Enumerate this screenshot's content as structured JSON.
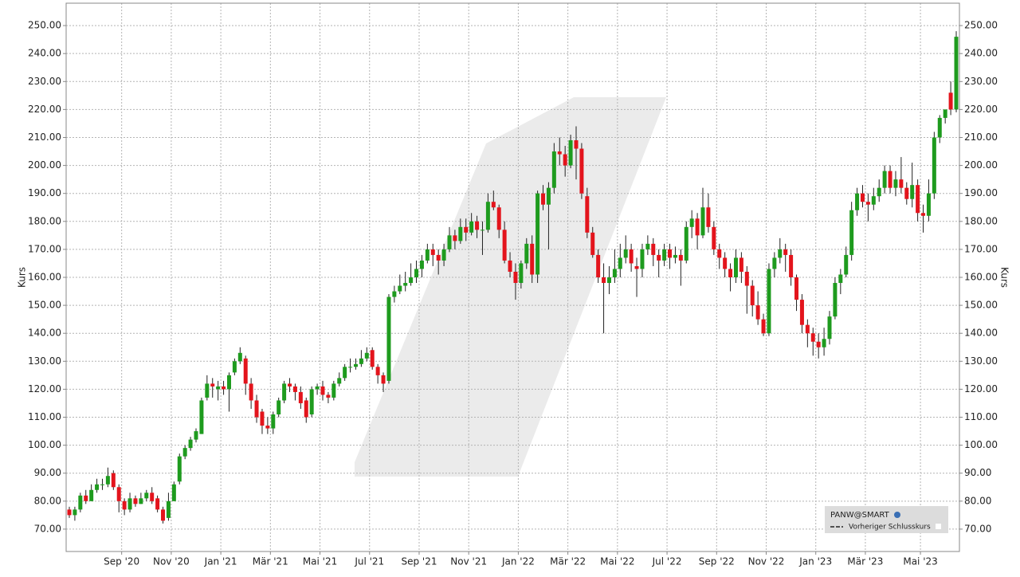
{
  "chart_data": {
    "type": "candlestick",
    "y_label": "Kurs",
    "grid": true,
    "legend": "bottom-right",
    "ylim": [
      62,
      258
    ],
    "yticks": [
      {
        "value": 70,
        "label": "70.00"
      },
      {
        "value": 80,
        "label": "80.00"
      },
      {
        "value": 90,
        "label": "90.00"
      },
      {
        "value": 100,
        "label": "100.00"
      },
      {
        "value": 110,
        "label": "110.00"
      },
      {
        "value": 120,
        "label": "120.00"
      },
      {
        "value": 130,
        "label": "130.00"
      },
      {
        "value": 140,
        "label": "140.00"
      },
      {
        "value": 150,
        "label": "150.00"
      },
      {
        "value": 160,
        "label": "160.00"
      },
      {
        "value": 170,
        "label": "170.00"
      },
      {
        "value": 180,
        "label": "180.00"
      },
      {
        "value": 190,
        "label": "190.00"
      },
      {
        "value": 200,
        "label": "200.00"
      },
      {
        "value": 210,
        "label": "210.00"
      },
      {
        "value": 220,
        "label": "220.00"
      },
      {
        "value": 230,
        "label": "230.00"
      },
      {
        "value": 240,
        "label": "240.00"
      },
      {
        "value": 250,
        "label": "250.00"
      }
    ],
    "categories": [
      null,
      null,
      null,
      null,
      null,
      null,
      null,
      null,
      null,
      null,
      "Sep '20",
      null,
      null,
      null,
      null,
      null,
      null,
      null,
      null,
      "Nov '20",
      null,
      null,
      null,
      null,
      null,
      null,
      null,
      null,
      "Jan '21",
      null,
      null,
      null,
      null,
      null,
      null,
      null,
      null,
      "Mär '21",
      null,
      null,
      null,
      null,
      null,
      null,
      null,
      null,
      "Mai '21",
      null,
      null,
      null,
      null,
      null,
      null,
      null,
      null,
      "Jul '21",
      null,
      null,
      null,
      null,
      null,
      null,
      null,
      null,
      "Sep '21",
      null,
      null,
      null,
      null,
      null,
      null,
      null,
      null,
      "Nov '21",
      null,
      null,
      null,
      null,
      null,
      null,
      null,
      null,
      "Jan '22",
      null,
      null,
      null,
      null,
      null,
      null,
      null,
      null,
      "Mär '22",
      null,
      null,
      null,
      null,
      null,
      null,
      null,
      null,
      "Mai '22",
      null,
      null,
      null,
      null,
      null,
      null,
      null,
      null,
      "Jul '22",
      null,
      null,
      null,
      null,
      null,
      null,
      null,
      null,
      "Sep '22",
      null,
      null,
      null,
      null,
      null,
      null,
      null,
      null,
      "Nov '22",
      null,
      null,
      null,
      null,
      null,
      null,
      null,
      null,
      "Jan '23",
      null,
      null,
      null,
      null,
      null,
      null,
      null,
      null,
      "Mär '23",
      null,
      null,
      null,
      null,
      null,
      null,
      null,
      null,
      null,
      "Mai '23",
      null,
      null,
      null,
      null,
      null,
      null
    ],
    "series": [
      {
        "name": "PANW@SMART",
        "up_color": "#1e9b1e",
        "down_color": "#e3141c",
        "ohlc": [
          [
            77,
            78,
            74,
            75
          ],
          [
            75,
            78,
            73,
            77
          ],
          [
            77,
            83,
            76,
            82
          ],
          [
            82,
            84,
            79,
            80
          ],
          [
            80,
            86,
            80,
            84
          ],
          [
            84,
            88,
            83,
            86
          ],
          [
            86,
            88,
            84,
            86
          ],
          [
            86,
            92,
            85,
            89
          ],
          [
            90,
            91,
            84,
            85
          ],
          [
            85,
            86,
            76,
            80
          ],
          [
            80,
            81,
            75,
            77
          ],
          [
            77,
            83,
            76,
            81
          ],
          [
            81,
            82,
            78,
            79
          ],
          [
            79,
            83,
            79,
            81
          ],
          [
            81,
            84,
            80,
            83
          ],
          [
            83,
            85,
            79,
            80
          ],
          [
            81,
            82,
            76,
            77
          ],
          [
            77,
            78,
            72,
            73
          ],
          [
            74,
            83,
            73,
            80
          ],
          [
            80,
            87,
            80,
            86
          ],
          [
            87,
            97,
            86,
            96
          ],
          [
            96,
            100,
            95,
            99
          ],
          [
            99,
            103,
            98,
            102
          ],
          [
            102,
            106,
            101,
            105
          ],
          [
            104,
            117,
            104,
            116
          ],
          [
            117,
            125,
            116,
            122
          ],
          [
            122,
            124,
            117,
            121
          ],
          [
            120,
            123,
            116,
            121
          ],
          [
            121,
            123,
            118,
            120
          ],
          [
            120,
            126,
            112,
            125
          ],
          [
            126,
            131,
            125,
            130
          ],
          [
            130,
            135,
            129,
            133
          ],
          [
            131,
            132,
            118,
            122
          ],
          [
            122,
            124,
            113,
            116
          ],
          [
            116,
            118,
            108,
            110
          ],
          [
            112,
            113,
            104,
            107
          ],
          [
            107,
            110,
            104,
            106
          ],
          [
            106,
            112,
            104,
            111
          ],
          [
            111,
            117,
            110,
            116
          ],
          [
            116,
            123,
            115,
            122
          ],
          [
            122,
            124,
            119,
            121
          ],
          [
            121,
            122,
            116,
            119
          ],
          [
            119,
            121,
            113,
            115
          ],
          [
            116,
            117,
            108,
            110
          ],
          [
            111,
            121,
            110,
            120
          ],
          [
            120,
            122,
            118,
            121
          ],
          [
            121,
            123,
            116,
            118
          ],
          [
            118,
            119,
            115,
            117
          ],
          [
            117,
            123,
            116,
            122
          ],
          [
            122,
            126,
            121,
            124
          ],
          [
            124,
            129,
            123,
            128
          ],
          [
            128,
            131,
            126,
            128
          ],
          [
            128,
            131,
            127,
            129
          ],
          [
            129,
            134,
            128,
            131
          ],
          [
            131,
            135,
            130,
            133
          ],
          [
            134,
            135,
            127,
            128
          ],
          [
            128,
            129,
            122,
            125
          ],
          [
            125,
            126,
            119,
            122
          ],
          [
            123,
            154,
            122,
            153
          ],
          [
            153,
            157,
            151,
            155
          ],
          [
            155,
            161,
            154,
            157
          ],
          [
            157,
            162,
            155,
            158
          ],
          [
            158,
            165,
            157,
            160
          ],
          [
            160,
            166,
            158,
            163
          ],
          [
            163,
            168,
            160,
            166
          ],
          [
            166,
            172,
            165,
            170
          ],
          [
            170,
            172,
            164,
            168
          ],
          [
            168,
            170,
            161,
            166
          ],
          [
            166,
            172,
            164,
            170
          ],
          [
            170,
            178,
            169,
            175
          ],
          [
            175,
            177,
            170,
            173
          ],
          [
            173,
            181,
            172,
            178
          ],
          [
            178,
            181,
            173,
            176
          ],
          [
            176,
            183,
            175,
            180
          ],
          [
            180,
            182,
            174,
            177
          ],
          [
            177,
            180,
            168,
            177
          ],
          [
            177,
            190,
            176,
            187
          ],
          [
            187,
            191,
            184,
            185
          ],
          [
            185,
            186,
            174,
            177
          ],
          [
            177,
            180,
            165,
            166
          ],
          [
            166,
            169,
            160,
            162
          ],
          [
            162,
            165,
            152,
            158
          ],
          [
            158,
            166,
            156,
            165
          ],
          [
            165,
            174,
            163,
            172
          ],
          [
            172,
            175,
            158,
            161
          ],
          [
            161,
            191,
            158,
            190
          ],
          [
            190,
            193,
            184,
            186
          ],
          [
            186,
            194,
            170,
            192
          ],
          [
            192,
            208,
            190,
            205
          ],
          [
            205,
            210,
            200,
            204
          ],
          [
            204,
            207,
            196,
            200
          ],
          [
            200,
            211,
            199,
            209
          ],
          [
            209,
            214,
            195,
            206
          ],
          [
            206,
            208,
            188,
            190
          ],
          [
            189,
            192,
            174,
            176
          ],
          [
            176,
            178,
            167,
            168
          ],
          [
            168,
            170,
            158,
            160
          ],
          [
            160,
            165,
            140,
            158
          ],
          [
            158,
            164,
            154,
            160
          ],
          [
            160,
            170,
            158,
            163
          ],
          [
            163,
            172,
            160,
            167
          ],
          [
            167,
            175,
            165,
            170
          ],
          [
            170,
            172,
            162,
            165
          ],
          [
            164,
            167,
            153,
            163
          ],
          [
            163,
            172,
            160,
            170
          ],
          [
            170,
            175,
            168,
            172
          ],
          [
            172,
            174,
            164,
            168
          ],
          [
            168,
            170,
            160,
            166
          ],
          [
            166,
            172,
            164,
            170
          ],
          [
            170,
            172,
            163,
            167
          ],
          [
            167,
            171,
            165,
            168
          ],
          [
            168,
            170,
            157,
            166
          ],
          [
            166,
            180,
            165,
            178
          ],
          [
            178,
            184,
            174,
            181
          ],
          [
            181,
            183,
            170,
            175
          ],
          [
            175,
            192,
            174,
            185
          ],
          [
            185,
            190,
            176,
            178
          ],
          [
            178,
            180,
            168,
            170
          ],
          [
            170,
            172,
            163,
            167
          ],
          [
            167,
            169,
            160,
            163
          ],
          [
            163,
            165,
            155,
            160
          ],
          [
            160,
            170,
            158,
            167
          ],
          [
            167,
            169,
            158,
            162
          ],
          [
            162,
            164,
            147,
            157
          ],
          [
            157,
            159,
            146,
            150
          ],
          [
            150,
            155,
            143,
            145
          ],
          [
            145,
            147,
            139,
            140
          ],
          [
            140,
            165,
            139,
            163
          ],
          [
            163,
            169,
            160,
            167
          ],
          [
            167,
            174,
            165,
            170
          ],
          [
            170,
            172,
            162,
            168
          ],
          [
            168,
            170,
            157,
            160
          ],
          [
            160,
            161,
            148,
            152
          ],
          [
            152,
            154,
            140,
            143
          ],
          [
            143,
            145,
            135,
            140
          ],
          [
            140,
            142,
            132,
            137
          ],
          [
            137,
            140,
            131,
            135
          ],
          [
            135,
            142,
            132,
            138
          ],
          [
            138,
            148,
            136,
            146
          ],
          [
            146,
            160,
            145,
            158
          ],
          [
            158,
            163,
            154,
            161
          ],
          [
            161,
            171,
            160,
            168
          ],
          [
            168,
            187,
            166,
            184
          ],
          [
            184,
            192,
            182,
            190
          ],
          [
            190,
            193,
            185,
            187
          ],
          [
            187,
            190,
            180,
            186
          ],
          [
            186,
            192,
            184,
            189
          ],
          [
            189,
            195,
            187,
            192
          ],
          [
            192,
            200,
            190,
            198
          ],
          [
            198,
            200,
            190,
            192
          ],
          [
            192,
            198,
            189,
            195
          ],
          [
            195,
            203,
            190,
            192
          ],
          [
            192,
            194,
            186,
            188
          ],
          [
            188,
            201,
            185,
            193
          ],
          [
            193,
            195,
            180,
            183
          ],
          [
            183,
            186,
            176,
            182
          ],
          [
            182,
            195,
            180,
            190
          ],
          [
            190,
            212,
            188,
            210
          ],
          [
            210,
            218,
            208,
            217
          ],
          [
            217,
            220,
            215,
            220
          ],
          [
            226,
            230,
            218,
            220
          ],
          [
            220,
            248,
            219,
            246
          ]
        ]
      }
    ],
    "reference_line": {
      "name": "Vorheriger Schlusskurs"
    }
  }
}
